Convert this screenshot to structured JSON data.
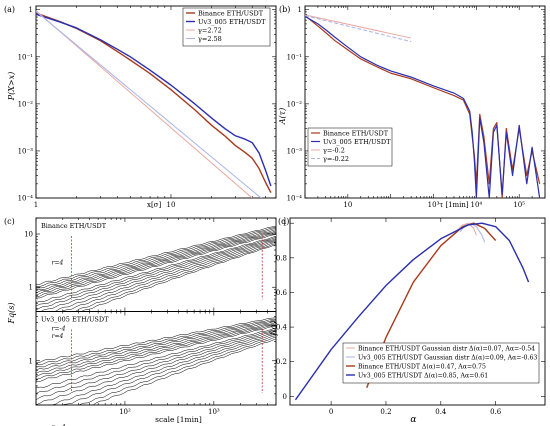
{
  "chart_data": [
    {
      "panel": "(a)",
      "type": "line",
      "xscale": "log",
      "yscale": "log",
      "xlim": [
        1,
        60
      ],
      "ylim": [
        0.0001,
        1.2
      ],
      "xlabel": "x[σ]",
      "ylabel": "P(X>x)",
      "xticks": [
        {
          "v": 1,
          "t": "1"
        },
        {
          "v": 10,
          "t": "10"
        }
      ],
      "yticks": [
        {
          "v": 1,
          "t": "1"
        },
        {
          "v": 0.1,
          "t": "10⁻¹"
        },
        {
          "v": 0.01,
          "t": "10⁻²"
        },
        {
          "v": 0.001,
          "t": "10⁻³"
        },
        {
          "v": 0.0001,
          "t": "10⁻⁴"
        }
      ],
      "legend_position": "top-right",
      "series": [
        {
          "name": "Binance ETH/USDT",
          "color": "#a83a1e",
          "width": 1.4,
          "x": [
            1,
            1.5,
            2,
            3,
            4,
            5,
            7,
            10,
            15,
            20,
            25,
            30,
            35,
            40,
            45,
            50,
            55
          ],
          "y": [
            0.85,
            0.56,
            0.4,
            0.22,
            0.13,
            0.085,
            0.044,
            0.02,
            0.0075,
            0.0035,
            0.0021,
            0.0013,
            0.00095,
            0.0007,
            0.00042,
            0.00022,
            0.00013
          ]
        },
        {
          "name": "Uv3_005 ETH/USDT",
          "color": "#2b2fb0",
          "width": 1.4,
          "x": [
            1,
            1.5,
            2,
            3,
            4,
            5,
            7,
            10,
            15,
            20,
            25,
            30,
            35,
            40,
            45,
            50,
            55
          ],
          "y": [
            0.8,
            0.55,
            0.41,
            0.23,
            0.145,
            0.1,
            0.052,
            0.025,
            0.01,
            0.005,
            0.003,
            0.0021,
            0.0018,
            0.0015,
            0.0009,
            0.0004,
            0.00018
          ]
        },
        {
          "name": "γ=2.72",
          "color": "#e9a8a0",
          "width": 1,
          "dash": "",
          "x": [
            1,
            55
          ],
          "y": [
            0.95,
            4.5e-05
          ]
        },
        {
          "name": "γ=2.58",
          "color": "#a9b4e8",
          "width": 1,
          "dash": "",
          "x": [
            1,
            55
          ],
          "y": [
            0.92,
            6.7e-05
          ]
        }
      ]
    },
    {
      "panel": "(b)",
      "type": "line",
      "xscale": "log",
      "yscale": "log",
      "xlim": [
        1,
        400000
      ],
      "ylim": [
        0.0001,
        1.2
      ],
      "xlabel": "τ [1min]",
      "ylabel": "A(τ)",
      "xticks": [
        {
          "v": 10,
          "t": "10"
        },
        {
          "v": 1000,
          "t": "10³"
        },
        {
          "v": 10000,
          "t": "10⁴"
        },
        {
          "v": 100000,
          "t": "10⁵"
        }
      ],
      "yticks": [
        {
          "v": 1,
          "t": "1"
        },
        {
          "v": 0.1,
          "t": "10⁻¹"
        },
        {
          "v": 0.01,
          "t": "10⁻²"
        },
        {
          "v": 0.001,
          "t": "10⁻³"
        },
        {
          "v": 0.0001,
          "t": "10⁻⁴"
        }
      ],
      "legend_position": "bottom-left",
      "series": [
        {
          "name": "Binance ETH/USDT",
          "color": "#a83a1e",
          "width": 1.2,
          "x": [
            1,
            2,
            3,
            5,
            10,
            20,
            50,
            100,
            300,
            1000,
            3000,
            5000,
            7000,
            8000,
            9000,
            10000,
            12000,
            15000,
            20000,
            25000,
            30000,
            40000,
            50000,
            70000,
            100000,
            150000,
            200000,
            300000
          ],
          "y": [
            0.75,
            0.45,
            0.33,
            0.22,
            0.14,
            0.09,
            0.06,
            0.045,
            0.034,
            0.022,
            0.015,
            0.012,
            0.006,
            0.002,
            0.0008,
            0.0002,
            0.006,
            0.002,
            0.0002,
            0.003,
            0.004,
            0.0001,
            0.003,
            0.0004,
            0.003,
            0.0003,
            0.001,
            0.0002
          ]
        },
        {
          "name": "Uv3_005 ETH/USDT",
          "color": "#2b2fb0",
          "width": 1.2,
          "x": [
            1,
            2,
            3,
            5,
            10,
            20,
            50,
            100,
            300,
            1000,
            3000,
            5000,
            7000,
            8000,
            9000,
            10000,
            12000,
            15000,
            20000,
            25000,
            30000,
            40000,
            50000,
            70000,
            100000,
            150000,
            200000,
            300000
          ],
          "y": [
            0.72,
            0.5,
            0.38,
            0.26,
            0.16,
            0.1,
            0.065,
            0.05,
            0.037,
            0.024,
            0.017,
            0.013,
            0.007,
            0.0025,
            0.0006,
            0.0001,
            0.005,
            0.0015,
            0.0001,
            0.0025,
            0.0035,
            0.00012,
            0.0025,
            0.0003,
            0.0035,
            0.0002,
            0.0012,
            0.0001
          ]
        },
        {
          "name": "γ=-0.2",
          "color": "#e9a8a0",
          "width": 1,
          "dash": "",
          "x": [
            1,
            300
          ],
          "y": [
            0.78,
            0.25
          ]
        },
        {
          "name": "γ=-0.22",
          "color": "#a9b4e8",
          "width": 1,
          "dash": "4,2",
          "x": [
            1,
            300
          ],
          "y": [
            0.75,
            0.21
          ]
        }
      ]
    },
    {
      "panel": "(c)",
      "type": "line",
      "xscale": "log",
      "yscale": "log",
      "xlabel": "scale [1min]",
      "ylabel": "Fq(s)",
      "xticks": [
        {
          "v": 100,
          "t": "10²"
        },
        {
          "v": 1000,
          "t": "10³"
        }
      ],
      "yticks": [
        {
          "v": 10,
          "t": "10"
        },
        {
          "v": 1,
          "t": "1"
        }
      ],
      "subpanels": [
        {
          "title": "Binance ETH/USDT",
          "q_top": "r=4",
          "q_bottom": "r=-4",
          "xlim": [
            10,
            5000
          ],
          "ylim": [
            0.35,
            20
          ],
          "s_min": 10,
          "s_max": 5000,
          "fit_range": [
            25,
            3500
          ],
          "q_values": [
            -4,
            -3.5,
            -3,
            -2.5,
            -2,
            -1.5,
            -1,
            -0.5,
            0,
            0.5,
            1,
            1.5,
            2,
            2.5,
            3,
            3.5,
            4
          ],
          "F_at_smin": [
            0.22,
            0.25,
            0.29,
            0.33,
            0.38,
            0.43,
            0.48,
            0.53,
            0.57,
            0.62,
            0.67,
            0.73,
            0.79,
            0.85,
            0.93,
            1.02,
            1.12
          ],
          "F_at_smax": [
            6.3,
            6.6,
            7.0,
            7.4,
            7.8,
            8.2,
            8.6,
            9.0,
            9.4,
            9.9,
            10.4,
            10.9,
            11.4,
            12.0,
            12.7,
            13.4,
            14.2
          ],
          "highlight_q": 0
        },
        {
          "title": "Uv3_005 ETH/USDT",
          "q_top": "r=4",
          "q_bottom": "r=-4",
          "xlim": [
            10,
            5000
          ],
          "ylim": [
            0.2,
            6
          ],
          "s_min": 10,
          "s_max": 5000,
          "fit_range": [
            25,
            3500
          ],
          "q_values": [
            -4,
            -3.5,
            -3,
            -2.5,
            -2,
            -1.5,
            -1,
            -0.5,
            0,
            0.5,
            1,
            1.5,
            2,
            2.5,
            3,
            3.5,
            4
          ],
          "F_at_smin": [
            0.12,
            0.14,
            0.17,
            0.2,
            0.24,
            0.28,
            0.33,
            0.38,
            0.42,
            0.47,
            0.52,
            0.58,
            0.64,
            0.71,
            0.78,
            0.86,
            0.95
          ],
          "F_at_smax": [
            2.2,
            2.35,
            2.5,
            2.65,
            2.8,
            2.95,
            3.1,
            3.25,
            3.4,
            3.55,
            3.7,
            3.85,
            4.0,
            4.2,
            4.4,
            4.6,
            4.85
          ],
          "highlight_q": 0
        }
      ]
    },
    {
      "panel": "(d)",
      "type": "line",
      "xlim": [
        -0.15,
        0.78
      ],
      "ylim": [
        -0.05,
        1.03
      ],
      "xlabel": "α",
      "ylabel": "f(α)",
      "xticks": [
        {
          "v": 0,
          "t": "0"
        },
        {
          "v": 0.2,
          "t": "0.2"
        },
        {
          "v": 0.4,
          "t": "0.4"
        },
        {
          "v": 0.6,
          "t": "0.6"
        }
      ],
      "yticks": [
        {
          "v": 0,
          "t": "0"
        },
        {
          "v": 0.2,
          "t": "0.2"
        },
        {
          "v": 0.4,
          "t": "0.4"
        },
        {
          "v": 0.6,
          "t": "0.6"
        },
        {
          "v": 0.8,
          "t": "0.8"
        },
        {
          "v": 1,
          "t": "1"
        }
      ],
      "legend_position": "bottom-right",
      "series": [
        {
          "name": "Binance ETH/USDT Gaussian distr Δ(α)=0.07, Aα=-0.54",
          "color": "#e9a8a0",
          "width": 1,
          "x": [
            0.46,
            0.48,
            0.5,
            0.52,
            0.53
          ],
          "y": [
            0.96,
            0.99,
            1.0,
            0.97,
            0.93
          ]
        },
        {
          "name": "Uv3_005 ETH/USDT Gaussian distr Δ(α)=0.09, Aα=-0.63",
          "color": "#a9b4e8",
          "width": 1,
          "x": [
            0.47,
            0.49,
            0.51,
            0.53,
            0.55,
            0.56
          ],
          "y": [
            0.95,
            0.99,
            1.0,
            0.98,
            0.93,
            0.89
          ]
        },
        {
          "name": "Binance ETH/USDT Δ(α)=0.47, Aα=0.75",
          "color": "#a83a1e",
          "width": 1.4,
          "x": [
            0.13,
            0.2,
            0.3,
            0.4,
            0.48,
            0.52,
            0.56,
            0.6
          ],
          "y": [
            0.05,
            0.34,
            0.66,
            0.87,
            0.98,
            1.0,
            0.97,
            0.9
          ]
        },
        {
          "name": "Uv3_005 ETH/USDT Δ(α)=0.85, Aα=0.61",
          "color": "#2b2fb0",
          "width": 1.4,
          "x": [
            -0.13,
            0.0,
            0.1,
            0.2,
            0.3,
            0.4,
            0.5,
            0.55,
            0.6,
            0.65,
            0.7,
            0.72
          ],
          "y": [
            -0.02,
            0.27,
            0.46,
            0.64,
            0.79,
            0.91,
            0.99,
            1.0,
            0.98,
            0.9,
            0.74,
            0.66
          ]
        }
      ]
    }
  ]
}
